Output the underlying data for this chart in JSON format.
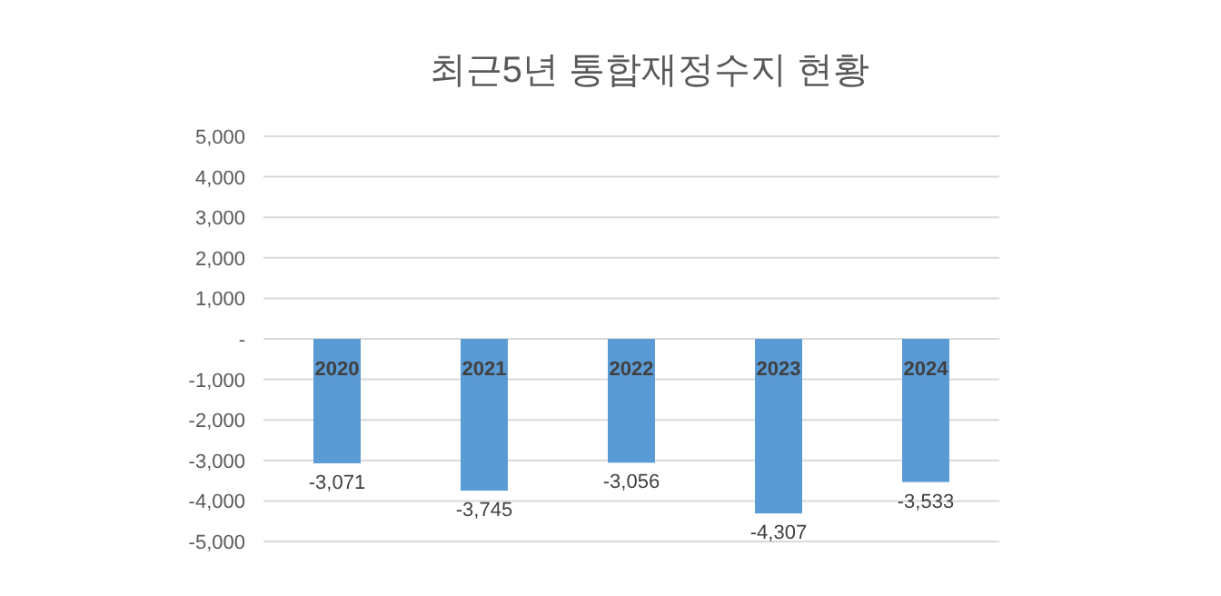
{
  "chart_data": {
    "type": "bar",
    "title": "최근5년 통합재정수지 현황",
    "categories": [
      "2020",
      "2021",
      "2022",
      "2023",
      "2024"
    ],
    "values": [
      -3071,
      -3745,
      -3056,
      -4307,
      -3533
    ],
    "value_labels": [
      "-3,071",
      "-3,745",
      "-3,056",
      "-4,307",
      "-3,533"
    ],
    "color": "#5b9bd5",
    "ylim": [
      -5000,
      5000
    ],
    "yticks": [
      {
        "value": 5000,
        "label": "5,000"
      },
      {
        "value": 4000,
        "label": "4,000"
      },
      {
        "value": 3000,
        "label": "3,000"
      },
      {
        "value": 2000,
        "label": "2,000"
      },
      {
        "value": 1000,
        "label": "1,000"
      },
      {
        "value": 0,
        "label": "-"
      },
      {
        "value": -1000,
        "label": "-1,000"
      },
      {
        "value": -2000,
        "label": "-2,000"
      },
      {
        "value": -3000,
        "label": "-3,000"
      },
      {
        "value": -4000,
        "label": "-4,000"
      },
      {
        "value": -5000,
        "label": "-5,000"
      }
    ],
    "grid": "y"
  }
}
